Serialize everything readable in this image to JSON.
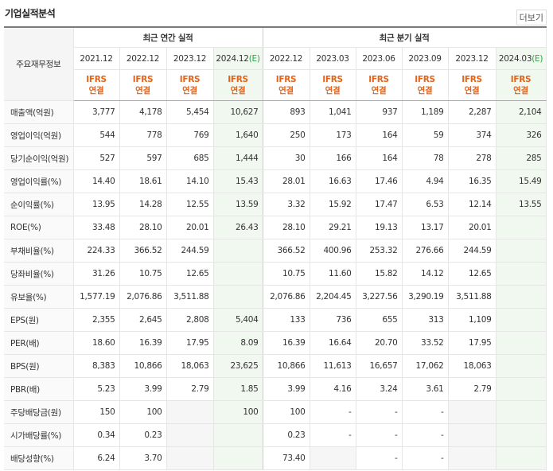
{
  "header": {
    "title": "기업실적분석",
    "more_link": "더보기"
  },
  "table": {
    "corner_label": "주요재무정보",
    "column_groups": [
      {
        "label": "최근 연간 실적",
        "span": 4
      },
      {
        "label": "최근 분기 실적",
        "span": 6
      }
    ],
    "periods": [
      {
        "date": "2021.12",
        "estimate": null
      },
      {
        "date": "2022.12",
        "estimate": null
      },
      {
        "date": "2023.12",
        "estimate": null
      },
      {
        "date": "2024.12",
        "estimate": "(E)"
      },
      {
        "date": "2022.12",
        "estimate": null
      },
      {
        "date": "2023.03",
        "estimate": null
      },
      {
        "date": "2023.06",
        "estimate": null
      },
      {
        "date": "2023.09",
        "estimate": null
      },
      {
        "date": "2023.12",
        "estimate": null
      },
      {
        "date": "2024.03",
        "estimate": "(E)"
      }
    ],
    "accounting": [
      [
        "IFRS",
        "연결"
      ],
      [
        "IFRS",
        "연결"
      ],
      [
        "IFRS",
        "연결"
      ],
      [
        "IFRS",
        "연결"
      ],
      [
        "IFRS",
        "연결"
      ],
      [
        "IFRS",
        "연결"
      ],
      [
        "IFRS",
        "연결"
      ],
      [
        "IFRS",
        "연결"
      ],
      [
        "IFRS",
        "연결"
      ],
      [
        "IFRS",
        "연결"
      ]
    ],
    "row_groups": [
      [
        {
          "label": "매출액(억원)",
          "values": [
            "3,777",
            "4,178",
            "5,454",
            "10,627",
            "893",
            "1,041",
            "937",
            "1,189",
            "2,287",
            "2,104"
          ]
        },
        {
          "label": "영업이익(억원)",
          "values": [
            "544",
            "778",
            "769",
            "1,640",
            "250",
            "173",
            "164",
            "59",
            "374",
            "326"
          ]
        },
        {
          "label": "당기순이익(억원)",
          "values": [
            "527",
            "597",
            "685",
            "1,444",
            "30",
            "166",
            "164",
            "78",
            "278",
            "285"
          ]
        }
      ],
      [
        {
          "label": "영업이익률(%)",
          "values": [
            "14.40",
            "18.61",
            "14.10",
            "15.43",
            "28.01",
            "16.63",
            "17.46",
            "4.94",
            "16.35",
            "15.49"
          ]
        },
        {
          "label": "순이익률(%)",
          "values": [
            "13.95",
            "14.28",
            "12.55",
            "13.59",
            "3.32",
            "15.92",
            "17.47",
            "6.53",
            "12.14",
            "13.55"
          ]
        },
        {
          "label": "ROE(%)",
          "values": [
            "33.48",
            "28.10",
            "20.01",
            "26.43",
            "28.10",
            "29.21",
            "19.13",
            "13.17",
            "20.01",
            null
          ]
        },
        {
          "label": "부채비율(%)",
          "values": [
            "224.33",
            "366.52",
            "244.59",
            null,
            "366.52",
            "400.96",
            "253.32",
            "276.66",
            "244.59",
            null
          ]
        },
        {
          "label": "당좌비율(%)",
          "values": [
            "31.26",
            "10.75",
            "12.65",
            null,
            "10.75",
            "11.60",
            "15.82",
            "14.12",
            "12.65",
            null
          ]
        },
        {
          "label": "유보율(%)",
          "values": [
            "1,577.19",
            "2,076.86",
            "3,511.88",
            null,
            "2,076.86",
            "2,204.45",
            "3,227.56",
            "3,290.19",
            "3,511.88",
            null
          ]
        }
      ],
      [
        {
          "label": "EPS(원)",
          "values": [
            "2,355",
            "2,645",
            "2,808",
            "5,404",
            "133",
            "736",
            "655",
            "313",
            "1,109",
            null
          ]
        },
        {
          "label": "PER(배)",
          "values": [
            "18.60",
            "16.39",
            "17.95",
            "8.09",
            "16.39",
            "16.64",
            "20.70",
            "33.52",
            "17.95",
            null
          ]
        },
        {
          "label": "BPS(원)",
          "values": [
            "8,383",
            "10,866",
            "18,063",
            "23,625",
            "10,866",
            "11,613",
            "16,657",
            "17,062",
            "18,063",
            null
          ]
        },
        {
          "label": "PBR(배)",
          "values": [
            "5.23",
            "3.99",
            "2.79",
            "1.85",
            "3.99",
            "4.16",
            "3.24",
            "3.61",
            "2.79",
            null
          ]
        }
      ],
      [
        {
          "label": "주당배당금(원)",
          "values": [
            "150",
            "100",
            null,
            "100",
            "100",
            "-",
            "-",
            "-",
            null,
            null
          ]
        },
        {
          "label": "시가배당률(%)",
          "values": [
            "0.34",
            "0.23",
            null,
            null,
            "0.23",
            "-",
            "-",
            "-",
            null,
            null
          ]
        },
        {
          "label": "배당성향(%)",
          "values": [
            "6.24",
            "3.70",
            null,
            null,
            "73.40",
            null,
            "-",
            "-",
            null,
            null
          ]
        }
      ]
    ]
  }
}
